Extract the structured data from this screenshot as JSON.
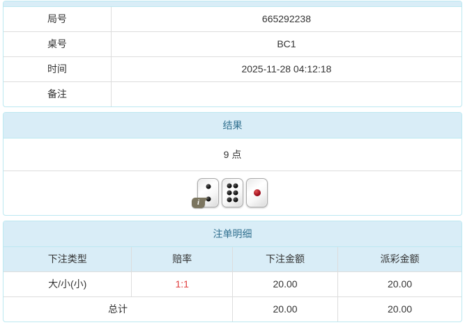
{
  "colors": {
    "panel_border": "#bce8f1",
    "heading_bg": "#d9edf7",
    "heading_text": "#31708f",
    "row_divider": "#dddddd",
    "body_text": "#333333",
    "odds_red": "#e03c3c",
    "red_pip": "#8f0012",
    "info_badge_bg": "#7b755f"
  },
  "info_panel": {
    "rows": [
      {
        "label": "局号",
        "value": "665292238"
      },
      {
        "label": "桌号",
        "value": "BC1"
      },
      {
        "label": "时间",
        "value": "2025-11-28 04:12:18"
      },
      {
        "label": "备注",
        "value": ""
      }
    ]
  },
  "result_panel": {
    "title": "结果",
    "result_text": "9 点",
    "dice": [
      {
        "value": 2,
        "color": "black"
      },
      {
        "value": 6,
        "color": "black"
      },
      {
        "value": 1,
        "color": "red"
      }
    ],
    "info_badge_label": "i"
  },
  "bets_panel": {
    "title": "注单明细",
    "headers": [
      "下注类型",
      "赔率",
      "下注金额",
      "派彩金额"
    ],
    "rows": [
      {
        "bet_type": "大/小(小)",
        "odds": "1:1",
        "bet_amount": "20.00",
        "payout_amount": "20.00"
      }
    ],
    "total": {
      "label": "总计",
      "bet_amount": "20.00",
      "payout_amount": "20.00"
    }
  }
}
